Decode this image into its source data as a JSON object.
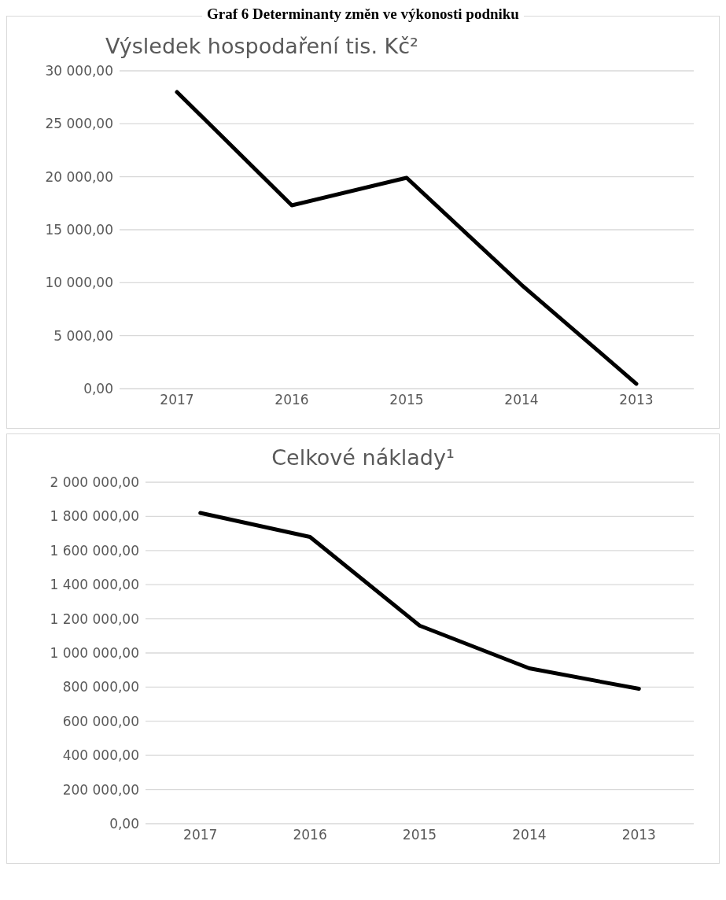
{
  "chart_data": [
    {
      "type": "line",
      "annotations": [
        "Graf 6 Determinanty změn ve výkonosti podniku"
      ],
      "title": "Výsledek hospodaření tis. Kč²",
      "categories": [
        "2017",
        "2016",
        "2015",
        "2014",
        "2013"
      ],
      "series": [
        {
          "color": "#000000",
          "values": [
            28000,
            17300,
            19900,
            9800,
            460
          ]
        }
      ],
      "ylim": [
        0,
        30000
      ],
      "yticks": [
        {
          "value": 0,
          "label": "0,00"
        },
        {
          "value": 5000,
          "label": "5 000,00"
        },
        {
          "value": 10000,
          "label": "10 000,00"
        },
        {
          "value": 15000,
          "label": "15 000,00"
        },
        {
          "value": 20000,
          "label": "20 000,00"
        },
        {
          "value": 25000,
          "label": "25 000,00"
        },
        {
          "value": 30000,
          "label": "30 000,00"
        }
      ],
      "grid": "y",
      "legend": false,
      "marker": "none",
      "line_style": "solid"
    },
    {
      "type": "line",
      "title": "Celkové náklady¹",
      "categories": [
        "2017",
        "2016",
        "2015",
        "2014",
        "2013"
      ],
      "series": [
        {
          "color": "#000000",
          "values": [
            1820000,
            1680000,
            1160000,
            910000,
            790000
          ]
        }
      ],
      "ylim": [
        0,
        2000000
      ],
      "yticks": [
        {
          "value": 0,
          "label": "0,00"
        },
        {
          "value": 200000,
          "label": "200 000,00"
        },
        {
          "value": 400000,
          "label": "400 000,00"
        },
        {
          "value": 600000,
          "label": "600 000,00"
        },
        {
          "value": 800000,
          "label": "800 000,00"
        },
        {
          "value": 1000000,
          "label": "1 000 000,00"
        },
        {
          "value": 1200000,
          "label": "1 200 000,00"
        },
        {
          "value": 1400000,
          "label": "1 400 000,00"
        },
        {
          "value": 1600000,
          "label": "1 600 000,00"
        },
        {
          "value": 1800000,
          "label": "1 800 000,00"
        },
        {
          "value": 2000000,
          "label": "2 000 000,00"
        }
      ],
      "grid": "y",
      "legend": false,
      "marker": "none",
      "line_style": "solid"
    }
  ]
}
